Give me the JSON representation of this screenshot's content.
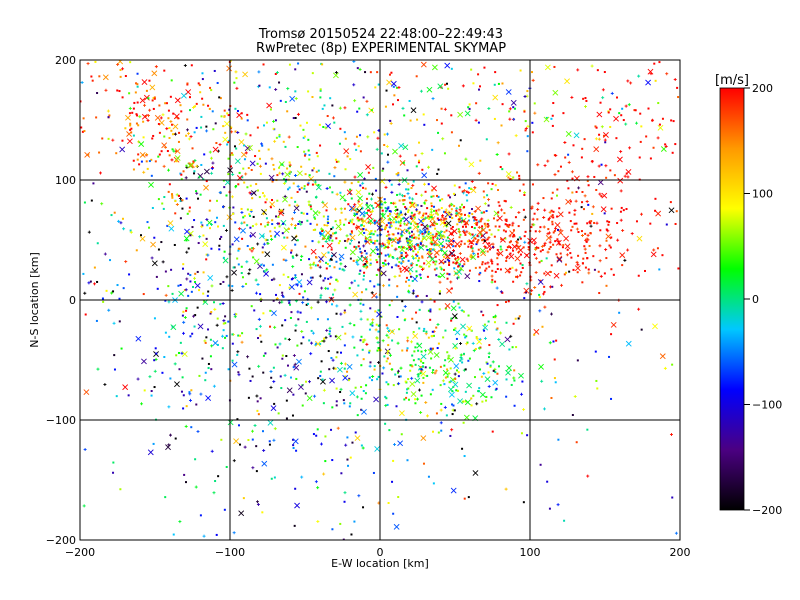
{
  "chart_data": {
    "type": "scatter",
    "title": [
      "Tromsø 20150524 22:48:00–22:49:43",
      "RwPretec (8p) EXPERIMENTAL SKYMAP"
    ],
    "xlabel": "E-W location [km]",
    "ylabel": "N-S location [km]",
    "xlim": [
      -200,
      200
    ],
    "ylim": [
      -200,
      200
    ],
    "x_ticks": [
      -200,
      -100,
      0,
      100,
      200
    ],
    "y_ticks": [
      -200,
      -100,
      0,
      100,
      200
    ],
    "grid": true,
    "colorbar": {
      "label": "[m/s]",
      "range": [
        -200,
        200
      ],
      "ticks": [
        -200,
        -100,
        0,
        100,
        200
      ],
      "colors": [
        "#000000",
        "#4b0082",
        "#0000ff",
        "#00c8ff",
        "#00ff00",
        "#ffff00",
        "#ff9900",
        "#ff0000"
      ]
    },
    "clusters": [
      {
        "center": [
          20,
          55
        ],
        "spread": [
          30,
          20
        ],
        "count": 700,
        "value_mean": 60,
        "value_spread": 100
      },
      {
        "center": [
          90,
          50
        ],
        "spread": [
          45,
          25
        ],
        "count": 450,
        "value_mean": 190,
        "value_spread": 15
      },
      {
        "center": [
          -150,
          150
        ],
        "spread": [
          30,
          30
        ],
        "count": 160,
        "value_mean": 180,
        "value_spread": 40
      },
      {
        "center": [
          -80,
          30
        ],
        "spread": [
          60,
          50
        ],
        "count": 500,
        "value_mean": -60,
        "value_spread": 100
      },
      {
        "center": [
          30,
          -50
        ],
        "spread": [
          35,
          25
        ],
        "count": 350,
        "value_mean": 40,
        "value_spread": 60
      },
      {
        "center": [
          -60,
          -80
        ],
        "spread": [
          60,
          60
        ],
        "count": 250,
        "value_mean": -80,
        "value_spread": 90
      },
      {
        "center": [
          0,
          160
        ],
        "spread": [
          120,
          30
        ],
        "count": 350,
        "value_mean": 60,
        "value_spread": 120
      },
      {
        "center": [
          -60,
          90
        ],
        "spread": [
          50,
          30
        ],
        "count": 300,
        "value_mean": 100,
        "value_spread": 80
      },
      {
        "center": [
          150,
          120
        ],
        "spread": [
          40,
          50
        ],
        "count": 150,
        "value_mean": 200,
        "value_spread": 10
      },
      {
        "center": [
          0,
          0
        ],
        "spread": [
          130,
          130
        ],
        "count": 450,
        "value_mean": 0,
        "value_spread": 150
      }
    ]
  }
}
